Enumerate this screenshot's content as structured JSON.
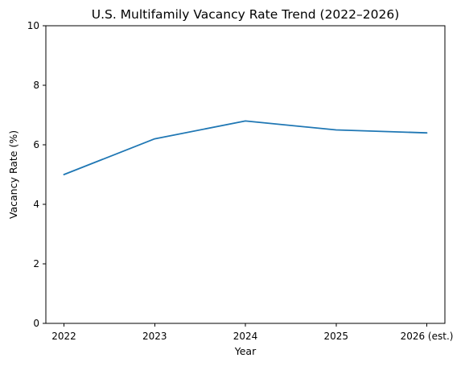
{
  "chart_data": {
    "type": "line",
    "title": "U.S. Multifamily Vacancy Rate Trend (2022–2026)",
    "xlabel": "Year",
    "ylabel": "Vacancy Rate (%)",
    "categories": [
      "2022",
      "2023",
      "2024",
      "2025",
      "2026 (est.)"
    ],
    "series": [
      {
        "values": [
          5.0,
          6.2,
          6.8,
          6.5,
          6.4
        ],
        "color": "#1f77b4"
      }
    ],
    "ylim": [
      0,
      10
    ],
    "yticks": [
      0,
      2,
      4,
      6,
      8,
      10
    ],
    "grid": false,
    "legend": "none"
  }
}
